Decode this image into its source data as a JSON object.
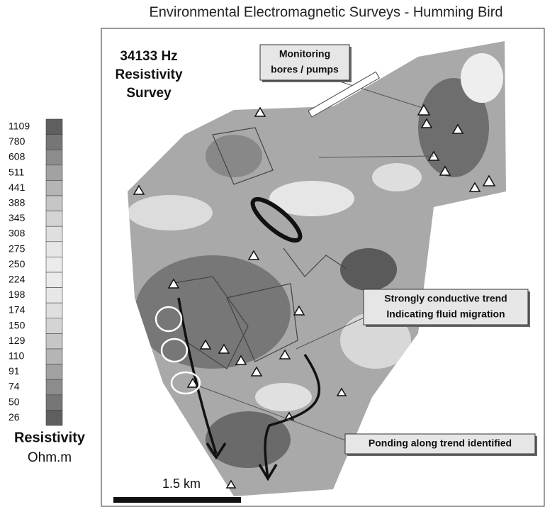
{
  "title": "Environmental Electromagnetic Surveys  - Humming Bird",
  "survey_label": [
    "34133 Hz",
    "Resistivity",
    "Survey"
  ],
  "legend": {
    "values": [
      1109,
      780,
      608,
      511,
      441,
      388,
      345,
      308,
      275,
      250,
      224,
      198,
      174,
      150,
      129,
      110,
      91,
      74,
      50,
      26
    ],
    "title": "Resistivity",
    "units": "Ohm.m"
  },
  "callouts": [
    {
      "lines": [
        "Monitoring",
        "bores / pumps"
      ]
    },
    {
      "lines": [
        "Strongly conductive trend",
        "Indicating  fluid migration"
      ]
    },
    {
      "lines": [
        "Ponding along trend identified"
      ]
    }
  ],
  "scale_bar": "1.5 km"
}
